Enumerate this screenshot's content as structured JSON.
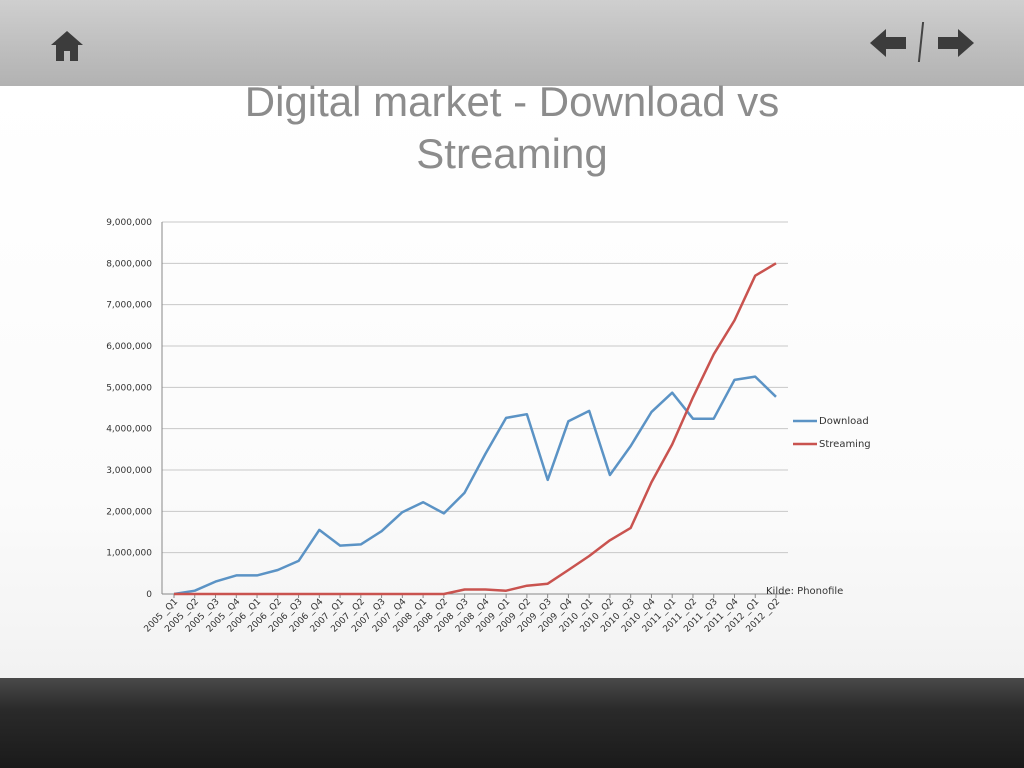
{
  "title_lines": [
    "Digital market - Download vs",
    "Streaming"
  ],
  "nav": {
    "home_icon": "home-icon",
    "back_icon": "arrow-left-icon",
    "forward_icon": "arrow-right-icon"
  },
  "colors": {
    "download": "#5b93c5",
    "streaming": "#c9534f",
    "grid": "#c8c8c8"
  },
  "chart_data": {
    "type": "line",
    "title": "",
    "xlabel": "",
    "ylabel": "",
    "ylim": [
      0,
      9000000
    ],
    "yticks": [
      0,
      1000000,
      2000000,
      3000000,
      4000000,
      5000000,
      6000000,
      7000000,
      8000000,
      9000000
    ],
    "ytick_labels": [
      "0",
      "1,000,000",
      "2,000,000",
      "3,000,000",
      "4,000,000",
      "5,000,000",
      "6,000,000",
      "7,000,000",
      "8,000,000",
      "9,000,000"
    ],
    "grid": true,
    "legend_position": "right",
    "categories": [
      "2005 _Q1",
      "2005 _Q2",
      "2005 _Q3",
      "2005 _Q4",
      "2006 _Q1",
      "2006 _Q2",
      "2006 _Q3",
      "2006 _Q4",
      "2007 _Q1",
      "2007 _Q2",
      "2007 _Q3",
      "2007 _Q4",
      "2008 _Q1",
      "2008 _Q2",
      "2008 _Q3",
      "2008 _Q4",
      "2009 _Q1",
      "2009 _Q2",
      "2009 _Q3",
      "2009 _Q4",
      "2010 _Q1",
      "2010 _Q2",
      "2010 _Q3",
      "2010 _Q4",
      "2011 _Q1",
      "2011 _Q2",
      "2011 _Q3",
      "2011 _Q4",
      "2012 _Q1",
      "2012 _Q2"
    ],
    "series": [
      {
        "name": "Download",
        "values": [
          0,
          80000,
          300000,
          450000,
          450000,
          580000,
          800000,
          1550000,
          1170000,
          1200000,
          1520000,
          1980000,
          2220000,
          1950000,
          2450000,
          3390000,
          4260000,
          4350000,
          2760000,
          4180000,
          4430000,
          2880000,
          3580000,
          4400000,
          4870000,
          4240000,
          4240000,
          5180000,
          5260000,
          4770000
        ]
      },
      {
        "name": "Streaming",
        "values": [
          0,
          0,
          0,
          0,
          0,
          0,
          0,
          0,
          0,
          0,
          0,
          0,
          0,
          0,
          110000,
          110000,
          80000,
          200000,
          250000,
          580000,
          920000,
          1300000,
          1600000,
          2700000,
          3620000,
          4760000,
          5800000,
          6620000,
          7700000,
          8000000
        ]
      }
    ],
    "annotation": "Kilde: Phonofile"
  }
}
